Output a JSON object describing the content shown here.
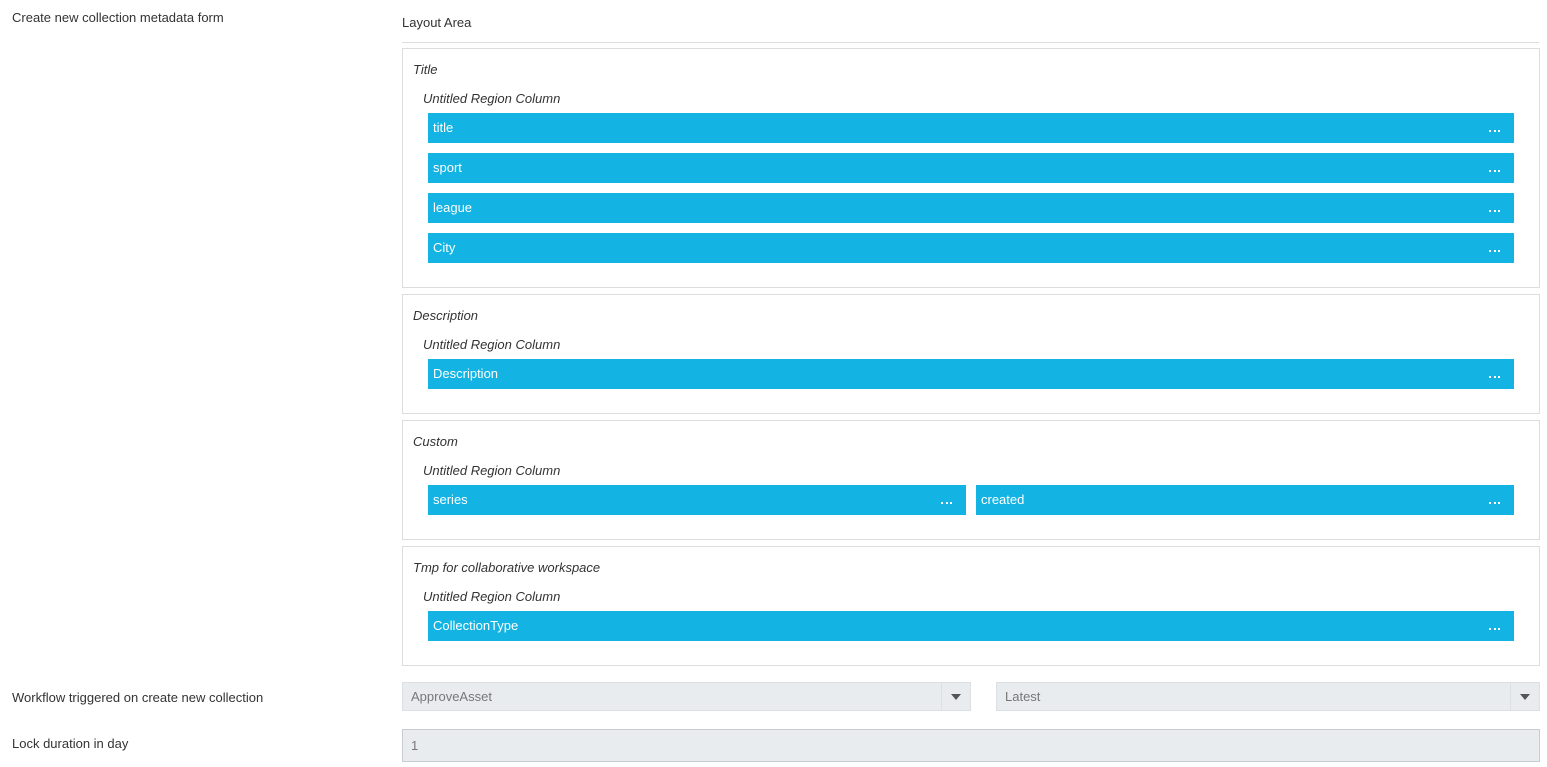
{
  "form_label": "Create new collection metadata form",
  "layout_area": {
    "label": "Layout Area",
    "sections": [
      {
        "title": "Title",
        "column": "Untitled Region Column",
        "rows": [
          [
            "title"
          ],
          [
            "sport"
          ],
          [
            "league"
          ],
          [
            "City"
          ]
        ]
      },
      {
        "title": "Description",
        "column": "Untitled Region Column",
        "rows": [
          [
            "Description"
          ]
        ]
      },
      {
        "title": "Custom",
        "column": "Untitled Region Column",
        "rows": [
          [
            "series",
            "created"
          ]
        ]
      },
      {
        "title": "Tmp for collaborative workspace",
        "column": "Untitled Region Column",
        "rows": [
          [
            "CollectionType"
          ]
        ]
      }
    ]
  },
  "workflow": {
    "label": "Workflow triggered on create new collection",
    "workflow": "ApproveAsset",
    "version": "Latest"
  },
  "lock": {
    "label": "Lock duration in day",
    "value": "1"
  }
}
